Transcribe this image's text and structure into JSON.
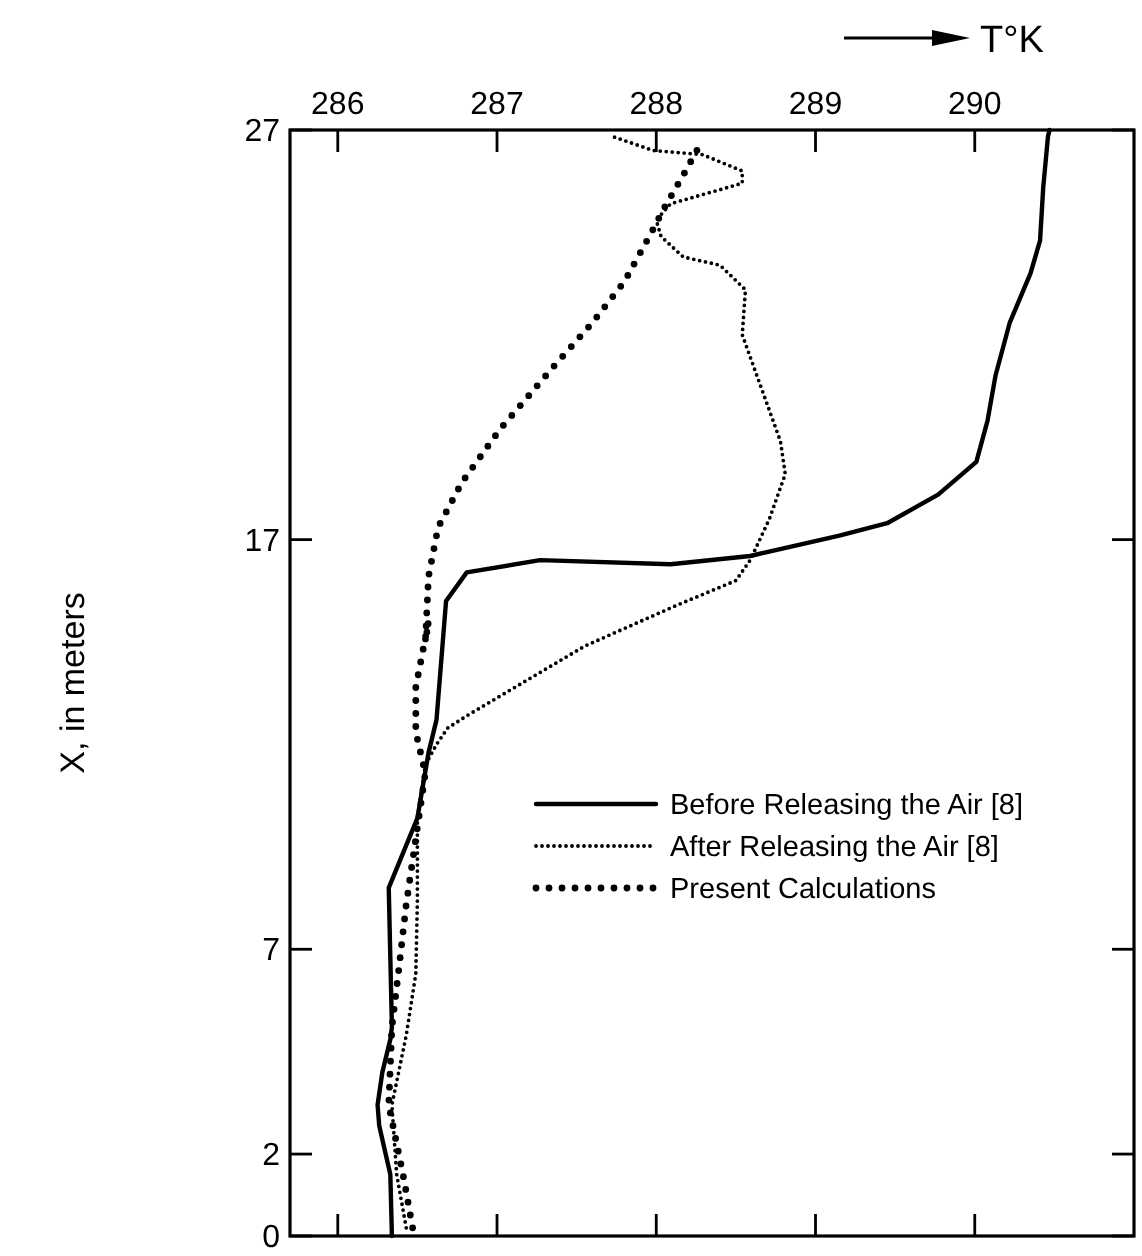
{
  "chart_data": {
    "type": "line",
    "xlabel": "T°K",
    "ylabel": "X, in meters",
    "xlim": [
      285.7,
      291.0
    ],
    "xticks": [
      286,
      287,
      288,
      289,
      290
    ],
    "ylim": [
      0,
      27
    ],
    "yticks": [
      0,
      2,
      7,
      17,
      27
    ],
    "grid": false,
    "legend": "right",
    "series": [
      {
        "name": "Before Releasing the Air [8]",
        "color": "#000000",
        "line_style": "solid",
        "x": [
          286.34,
          286.33,
          286.26,
          286.25,
          286.28,
          286.33,
          286.34,
          286.32,
          286.5,
          286.57,
          286.62,
          286.68,
          286.81,
          287.27,
          288.09,
          288.59,
          289.15,
          289.45,
          289.77,
          290.01,
          290.08,
          290.13,
          290.22,
          290.35,
          290.41,
          290.43,
          290.46,
          290.47
        ],
        "values": [
          0,
          1.5,
          2.7,
          3.2,
          4.0,
          4.8,
          5.1,
          8.5,
          10.2,
          11.8,
          12.6,
          15.5,
          16.2,
          16.5,
          16.4,
          16.6,
          17.1,
          17.4,
          18.1,
          18.9,
          19.9,
          21.0,
          22.3,
          23.5,
          24.3,
          25.6,
          26.85,
          27
        ]
      },
      {
        "name": "After Releasing the Air [8]",
        "color": "#000000",
        "line_style": "dotted",
        "x": [
          286.43,
          286.37,
          286.34,
          286.43,
          286.49,
          286.5,
          286.5,
          286.55,
          286.62,
          286.69,
          286.81,
          287.55,
          288.13,
          288.5,
          288.59,
          288.71,
          288.81,
          288.78,
          288.66,
          288.54,
          288.56,
          288.4,
          288.17,
          288.03,
          288.0,
          288.09,
          288.54,
          288.54,
          288.29,
          287.98,
          287.72
        ],
        "values": [
          0.2,
          1.5,
          3.2,
          4.9,
          6.4,
          8.2,
          10.2,
          11.5,
          12.0,
          12.4,
          12.7,
          14.4,
          15.4,
          16.0,
          16.5,
          17.5,
          18.6,
          19.4,
          20.7,
          22.0,
          23.1,
          23.7,
          23.9,
          24.4,
          24.8,
          25.2,
          25.7,
          26.0,
          26.4,
          26.5,
          26.85
        ]
      },
      {
        "name": "Present Calculations",
        "color": "#000000",
        "line_style": "dotted",
        "x": [
          286.47,
          286.41,
          286.32,
          286.34,
          286.38,
          286.43,
          286.49,
          286.55,
          286.49,
          286.49,
          286.49,
          286.57,
          286.55,
          286.57,
          286.63,
          286.78,
          287.02,
          287.35,
          287.6,
          287.8,
          287.97,
          288.05,
          288.17,
          288.29
        ],
        "values": [
          0.2,
          1.5,
          3.2,
          5.1,
          6.4,
          8.1,
          9.7,
          11.3,
          12.3,
          12.9,
          13.4,
          15.0,
          14.5,
          16.1,
          17.3,
          18.4,
          19.7,
          21.2,
          22.3,
          23.3,
          24.5,
          25.1,
          25.9,
          26.75
        ]
      }
    ]
  }
}
